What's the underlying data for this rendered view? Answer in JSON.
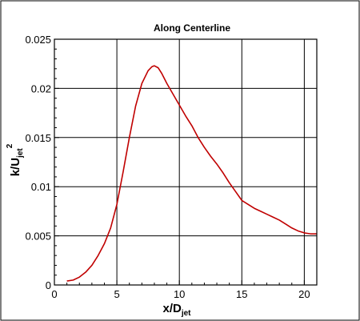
{
  "chart_data": {
    "type": "line",
    "title": "Along Centerline",
    "xlabel": "x/D",
    "xlabel_sub": "jet",
    "ylabel": "k/U",
    "ylabel_sub": "jet",
    "ylabel_sup": "2",
    "xlim": [
      0,
      21
    ],
    "ylim": [
      0,
      0.025
    ],
    "x_ticks": [
      0,
      5,
      10,
      15,
      20
    ],
    "x_tick_labels": [
      "0",
      "5",
      "10",
      "15",
      "20"
    ],
    "y_ticks": [
      0,
      0.005,
      0.01,
      0.015,
      0.02,
      0.025
    ],
    "y_tick_labels": [
      "0",
      "0.005",
      "0.01",
      "0.015",
      "0.02",
      "0.025"
    ],
    "grid": true,
    "series": [
      {
        "color": "#c00000",
        "x": [
          1.0,
          1.5,
          2.0,
          2.5,
          3.0,
          3.5,
          4.0,
          4.5,
          5.0,
          5.5,
          6.0,
          6.5,
          7.0,
          7.5,
          7.8,
          8.0,
          8.3,
          8.6,
          9.0,
          9.5,
          10.0,
          10.5,
          11.0,
          11.5,
          12.0,
          12.5,
          13.0,
          13.5,
          14.0,
          14.5,
          15.0,
          15.5,
          16.0,
          16.5,
          17.0,
          17.5,
          18.0,
          18.5,
          19.0,
          19.5,
          20.0,
          20.5,
          21.0
        ],
        "y": [
          0.0004,
          0.0005,
          0.0008,
          0.0013,
          0.002,
          0.003,
          0.0042,
          0.0058,
          0.0082,
          0.0115,
          0.015,
          0.0182,
          0.0205,
          0.0218,
          0.0222,
          0.0223,
          0.0221,
          0.0215,
          0.0205,
          0.0194,
          0.0183,
          0.0172,
          0.0162,
          0.015,
          0.014,
          0.0131,
          0.0123,
          0.0114,
          0.0104,
          0.0095,
          0.0086,
          0.0082,
          0.0078,
          0.0075,
          0.0072,
          0.0069,
          0.0066,
          0.0062,
          0.0058,
          0.0055,
          0.0053,
          0.0052,
          0.0052
        ]
      }
    ]
  }
}
